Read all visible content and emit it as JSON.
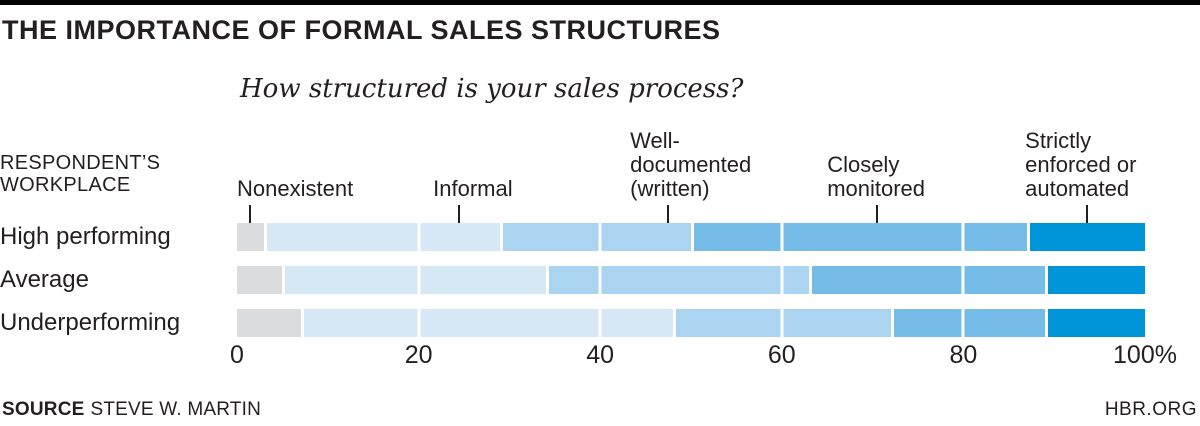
{
  "header": {
    "title": "THE IMPORTANCE OF FORMAL SALES STRUCTURES",
    "subtitle": "How structured is your sales process?"
  },
  "axis_header": "RESPONDENT’S WORKPLACE",
  "chart_data": {
    "type": "bar",
    "orientation": "horizontal",
    "stacked": true,
    "title": "How structured is your sales process?",
    "categories": [
      "High performing",
      "Average",
      "Underperforming"
    ],
    "series": [
      {
        "name": "Nonexistent",
        "color": "#dbdcdd",
        "values": [
          3,
          5,
          7
        ]
      },
      {
        "name": "Informal",
        "color": "#d6e7f6",
        "values": [
          26,
          29,
          41
        ]
      },
      {
        "name": "Well-documented (written)",
        "color": "#abd4f0",
        "values": [
          21,
          29,
          24
        ]
      },
      {
        "name": "Closely monitored",
        "color": "#75bde8",
        "values": [
          37,
          26,
          17
        ]
      },
      {
        "name": "Strictly enforced or automated",
        "color": "#0095d9",
        "values": [
          13,
          11,
          11
        ]
      }
    ],
    "xlim": [
      0,
      100
    ],
    "gridlines_at": [
      20,
      40,
      60,
      80
    ],
    "x_ticks": [
      {
        "pct": 0,
        "label": "0"
      },
      {
        "pct": 20,
        "label": "20"
      },
      {
        "pct": 40,
        "label": "40"
      },
      {
        "pct": 60,
        "label": "60"
      },
      {
        "pct": 80,
        "label": "80"
      },
      {
        "pct": 100,
        "label": "100%"
      }
    ],
    "legend_position": "above-as-callout-labels"
  },
  "segment_labels": [
    {
      "lines": [
        "Nonexistent"
      ],
      "left_pct": 0,
      "pointer_pct": 1.4
    },
    {
      "lines": [
        "Informal"
      ],
      "left_pct": 21.6,
      "pointer_pct": 24.4
    },
    {
      "lines": [
        "Well-",
        "documented",
        "(written)"
      ],
      "left_pct": 43.3,
      "pointer_pct": 47.5
    },
    {
      "lines": [
        "Closely",
        "monitored"
      ],
      "left_pct": 65.0,
      "pointer_pct": 70.5
    },
    {
      "lines": [
        "Strictly",
        "enforced or",
        "automated"
      ],
      "left_pct": 86.8,
      "pointer_pct": 93.6
    }
  ],
  "footer": {
    "source_label": "SOURCE",
    "source_value": "STEVE W. MARTIN",
    "site": "HBR.ORG"
  }
}
